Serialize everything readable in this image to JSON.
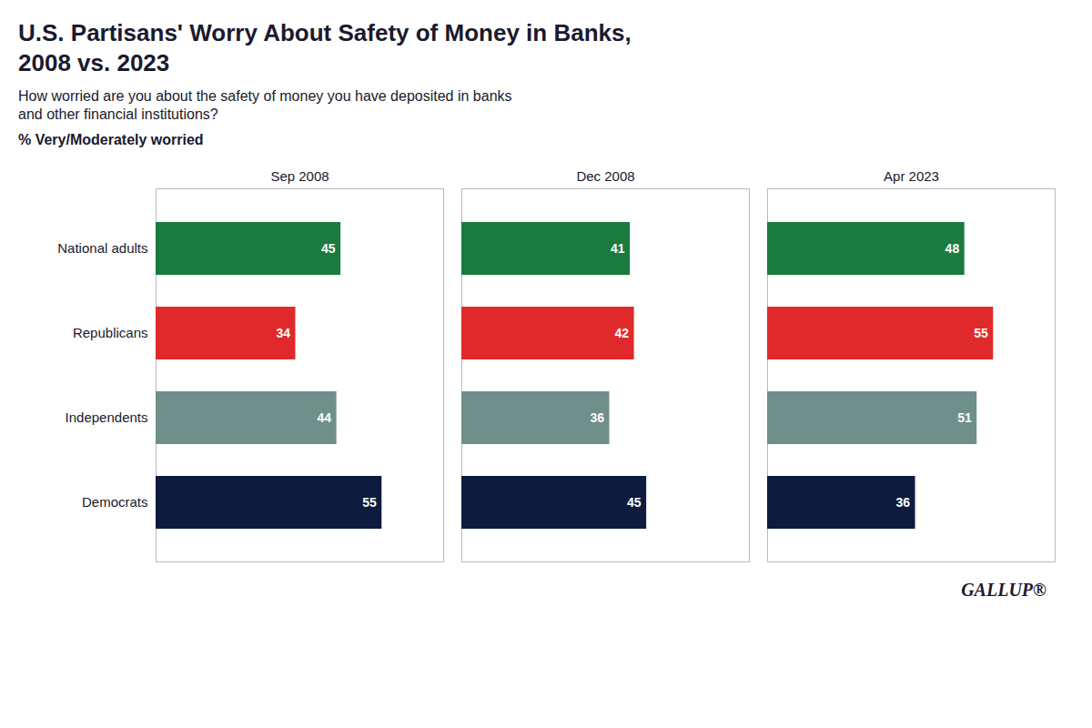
{
  "chart_data": {
    "type": "bar",
    "orientation": "horizontal",
    "title": "U.S. Partisans' Worry About Safety of Money in Banks,\n2008 vs. 2023",
    "subtitle": [
      "How worried are you about the safety of money you have deposited in banks",
      "and other financial institutions?"
    ],
    "xlabel": "% Very/Moderately worried",
    "categories": [
      "National adults",
      "Republicans",
      "Independents",
      "Democrats"
    ],
    "colors": [
      "#1a7a40",
      "#e0292b",
      "#6e8f8a",
      "#0d1b3e"
    ],
    "series": [
      {
        "name": "Sep 2008",
        "values": [
          45,
          34,
          44,
          55
        ]
      },
      {
        "name": "Dec 2008",
        "values": [
          41,
          42,
          36,
          45
        ]
      },
      {
        "name": "Apr 2023",
        "values": [
          48,
          55,
          51,
          36
        ]
      }
    ],
    "xlim": [
      0,
      70
    ],
    "tick_labels": false,
    "grid": false,
    "data_labels": true,
    "annotations": [
      "GALLUP®"
    ]
  }
}
